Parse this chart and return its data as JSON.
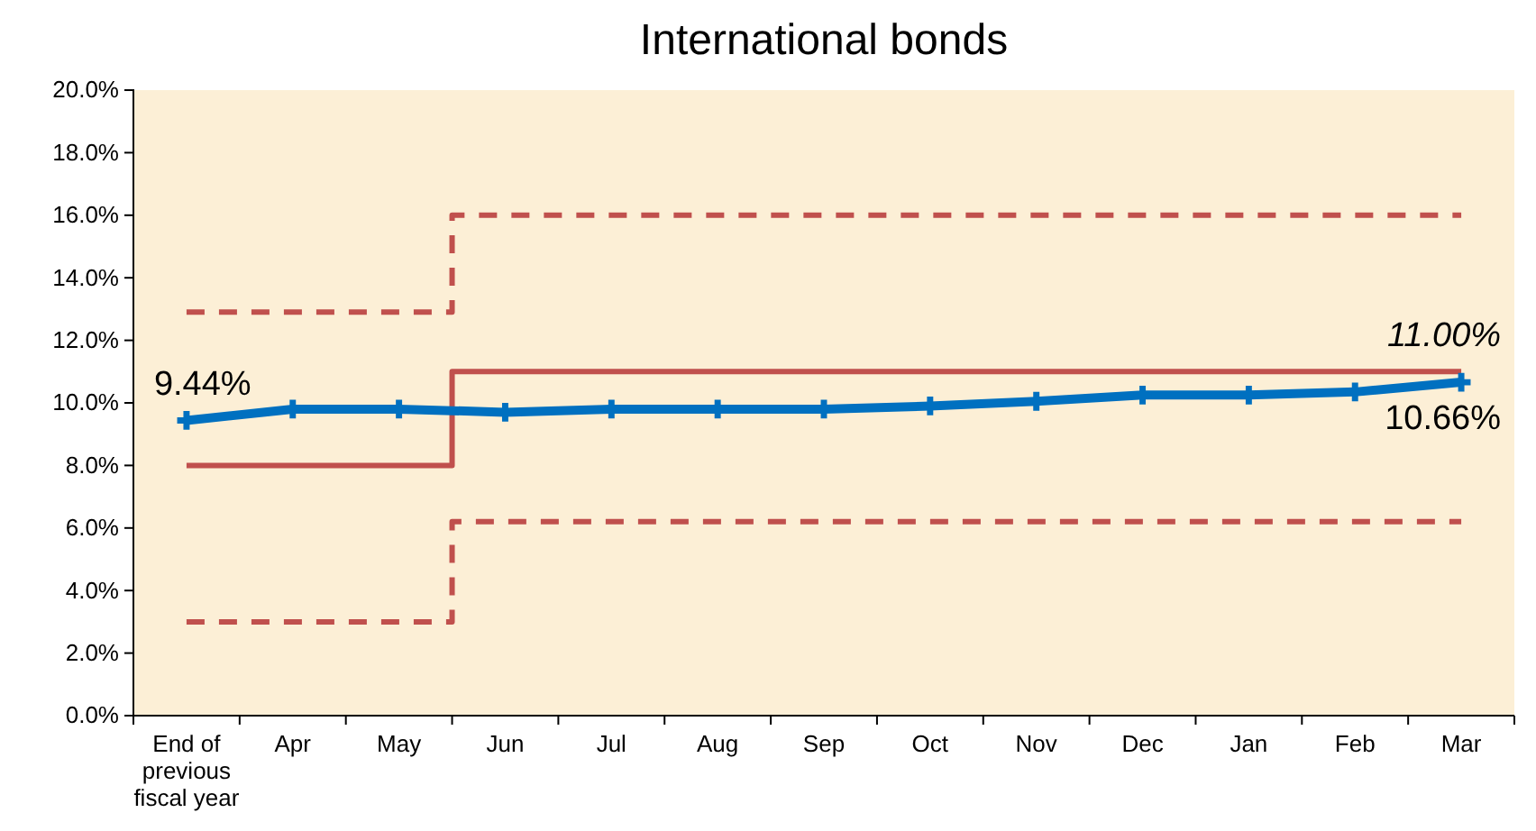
{
  "chart_data": {
    "type": "line",
    "title": "International bonds",
    "categories": [
      "End of previous fiscal year",
      "Apr",
      "May",
      "Jun",
      "Jul",
      "Aug",
      "Sep",
      "Oct",
      "Nov",
      "Dec",
      "Jan",
      "Feb",
      "Mar"
    ],
    "series": [
      {
        "type": "step",
        "color": "#c0504d",
        "line_style": "dashed",
        "marker": "none",
        "values": [
          12.9,
          12.9,
          12.9,
          16.0,
          16.0,
          16.0,
          16.0,
          16.0,
          16.0,
          16.0,
          16.0,
          16.0,
          16.0
        ]
      },
      {
        "type": "step",
        "color": "#c0504d",
        "line_style": "solid",
        "marker": "none",
        "values": [
          8.0,
          8.0,
          8.0,
          11.0,
          11.0,
          11.0,
          11.0,
          11.0,
          11.0,
          11.0,
          11.0,
          11.0,
          11.0
        ]
      },
      {
        "type": "step",
        "color": "#c0504d",
        "line_style": "dashed",
        "marker": "none",
        "values": [
          3.0,
          3.0,
          3.0,
          6.2,
          6.2,
          6.2,
          6.2,
          6.2,
          6.2,
          6.2,
          6.2,
          6.2,
          6.2
        ]
      },
      {
        "color": "#0070c0",
        "line_style": "solid",
        "marker": "cross",
        "values": [
          9.44,
          9.8,
          9.8,
          9.7,
          9.8,
          9.8,
          9.8,
          9.9,
          10.05,
          10.25,
          10.25,
          10.35,
          10.66
        ]
      }
    ],
    "annotations": [
      {
        "text": "9.44%",
        "x": "End of previous fiscal year",
        "y": 9.44
      },
      {
        "text": "11.00%",
        "x": "Mar",
        "y": 11.0
      },
      {
        "text": "10.66%",
        "x": "Mar",
        "y": 10.66
      }
    ],
    "ylim": [
      0,
      20
    ],
    "yticks": [
      {
        "value": 0,
        "label": "0.0%"
      },
      {
        "value": 2,
        "label": "2.0%"
      },
      {
        "value": 4,
        "label": "4.0%"
      },
      {
        "value": 6,
        "label": "6.0%"
      },
      {
        "value": 8,
        "label": "8.0%"
      },
      {
        "value": 10,
        "label": "10.0%"
      },
      {
        "value": 12,
        "label": "12.0%"
      },
      {
        "value": 14,
        "label": "14.0%"
      },
      {
        "value": 16,
        "label": "16.0%"
      },
      {
        "value": 18,
        "label": "18.0%"
      },
      {
        "value": 20,
        "label": "20.0%"
      }
    ],
    "grid": false
  }
}
